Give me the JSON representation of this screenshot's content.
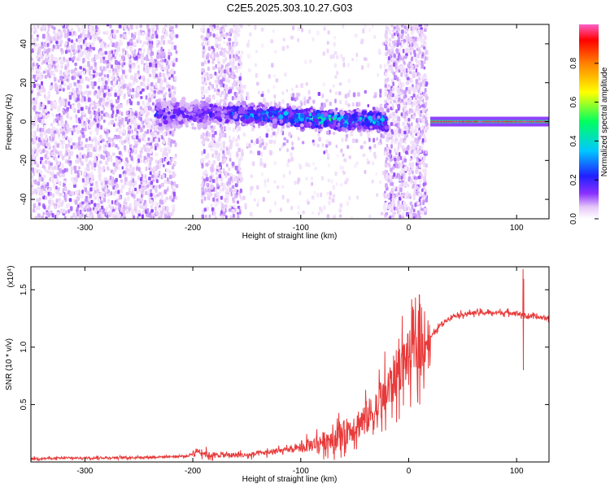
{
  "title": "C2E5.2025.303.10.27.G03",
  "chart_data": [
    {
      "type": "heatmap",
      "title": "C2E5.2025.303.10.27.G03",
      "xlabel": "Height of straight line (km)",
      "ylabel": "Frequency (Hz)",
      "xlim": [
        -350,
        130
      ],
      "ylim": [
        -50,
        50
      ],
      "xticks": [
        -300,
        -200,
        -100,
        0,
        100
      ],
      "yticks": [
        -40,
        -20,
        0,
        20,
        40
      ],
      "colorbar": {
        "label": "Normalized spectral amplitude",
        "range": [
          0,
          1
        ],
        "ticks": [
          0.0,
          0.2,
          0.4,
          0.6,
          0.8
        ],
        "tick_labels": [
          "0.0",
          "0.2",
          "0.4",
          "0.6",
          "0.8"
        ],
        "colors": [
          "#ffffff",
          "#e6c8f8",
          "#7a20ff",
          "#2020ff",
          "#00c8ff",
          "#00ff60",
          "#ffff00",
          "#ff8000",
          "#ff0000",
          "#ff60c8"
        ]
      },
      "ridge": {
        "description_points_x": [
          -230,
          -200,
          -150,
          -120,
          -100,
          -70,
          -50,
          -30,
          -22,
          0,
          20,
          60,
          100,
          130
        ],
        "frequency_hz": [
          4,
          4,
          4,
          3,
          2,
          1,
          0.5,
          0.5,
          0,
          0,
          0,
          0,
          0,
          0
        ],
        "peak_amplitude": [
          0.35,
          0.3,
          0.45,
          0.5,
          0.55,
          0.55,
          0.5,
          0.5,
          0.5,
          0.1,
          0.95,
          0.95,
          0.95,
          0.95
        ]
      }
    },
    {
      "type": "line",
      "xlabel": "Height of straight line (km)",
      "ylabel": "SNR (10 * v/v)",
      "y_multiplier": "(x10⁴)",
      "xlim": [
        -350,
        130
      ],
      "ylim": [
        0,
        1.7
      ],
      "xticks": [
        -300,
        -200,
        -100,
        0,
        100
      ],
      "yticks": [
        0.5,
        1.0,
        1.5
      ],
      "ytick_labels": [
        "0.5",
        "1.0",
        "1.5"
      ],
      "color": "#e83a3a",
      "series": [
        {
          "name": "SNR",
          "x": [
            -350,
            -250,
            -205,
            -195,
            -185,
            -150,
            -100,
            -80,
            -60,
            -40,
            -30,
            -20,
            -10,
            0,
            10,
            15,
            20,
            30,
            40,
            60,
            80,
            100,
            105,
            110,
            130
          ],
          "values": [
            0.03,
            0.04,
            0.05,
            0.1,
            0.06,
            0.06,
            0.12,
            0.18,
            0.25,
            0.38,
            0.45,
            0.6,
            0.8,
            0.93,
            1.0,
            1.05,
            1.08,
            1.2,
            1.27,
            1.3,
            1.3,
            1.3,
            1.28,
            1.27,
            1.25
          ]
        }
      ],
      "annotations": [
        {
          "x": 10,
          "spike_max": 1.45,
          "spike_min": 0.5
        },
        {
          "x": 106,
          "spike_max": 1.68,
          "spike_min": 0.8
        }
      ]
    }
  ]
}
